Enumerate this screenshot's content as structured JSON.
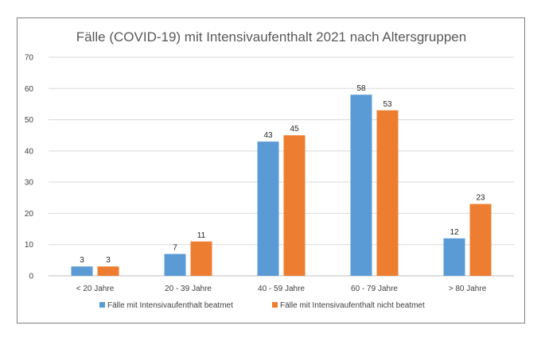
{
  "chart_data": {
    "type": "bar",
    "title": "Fälle (COVID-19) mit Intensivaufenthalt 2021 nach Altersgruppen",
    "categories": [
      "< 20 Jahre",
      "20 - 39 Jahre",
      "40 - 59 Jahre",
      "60 - 79 Jahre",
      "> 80 Jahre"
    ],
    "series": [
      {
        "name": "Fälle mit Intensivaufenthalt beatmet",
        "color": "#5b9bd5",
        "values": [
          3,
          7,
          43,
          58,
          12
        ]
      },
      {
        "name": "Fälle mit Intensivaufenthalt nicht beatmet",
        "color": "#ed7d31",
        "values": [
          3,
          11,
          45,
          53,
          23
        ]
      }
    ],
    "ylim": [
      0,
      70
    ],
    "yticks": [
      0,
      10,
      20,
      30,
      40,
      50,
      60,
      70
    ],
    "grid": true,
    "data_labels": true,
    "legend_position": "bottom"
  }
}
